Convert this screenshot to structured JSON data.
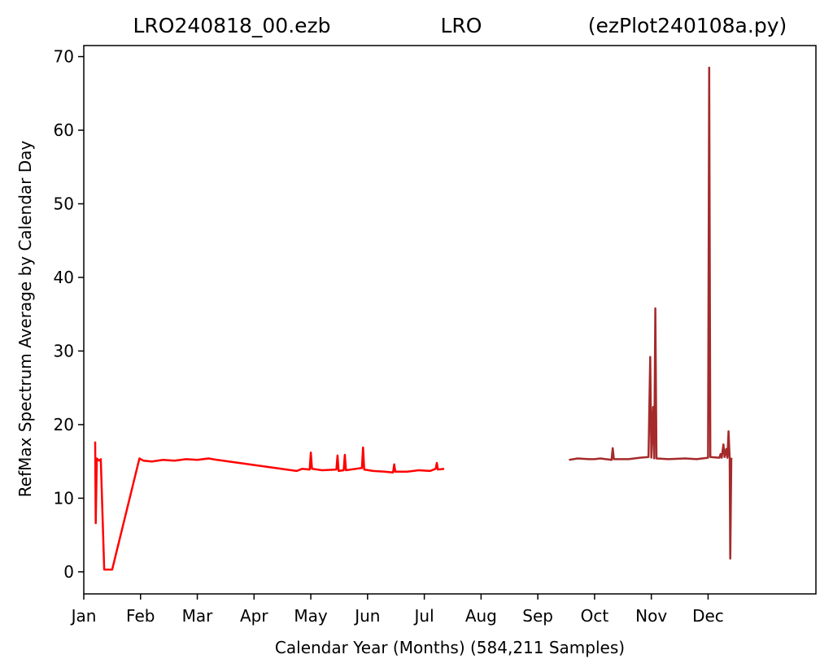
{
  "chart_data": {
    "type": "line",
    "title_left": "LRO240818_00.ezb",
    "title_center": "LRO",
    "title_right": "(ezPlot240108a.py)",
    "xlabel": "Calendar Year (Months) (584,211 Samples)",
    "ylabel": "RefMax Spectrum Average by Calendar Day",
    "xlim": [
      0,
      12.9
    ],
    "ylim": [
      -3,
      71.5
    ],
    "x_ticks": [
      {
        "label": "Jan",
        "value": 0
      },
      {
        "label": "Feb",
        "value": 1
      },
      {
        "label": "Mar",
        "value": 2
      },
      {
        "label": "Apr",
        "value": 3
      },
      {
        "label": "May",
        "value": 4
      },
      {
        "label": "Jun",
        "value": 5
      },
      {
        "label": "Jul",
        "value": 6
      },
      {
        "label": "Aug",
        "value": 7
      },
      {
        "label": "Sep",
        "value": 8
      },
      {
        "label": "Oct",
        "value": 9
      },
      {
        "label": "Nov",
        "value": 10
      },
      {
        "label": "Dec",
        "value": 11
      }
    ],
    "y_ticks": [
      0,
      10,
      20,
      30,
      40,
      50,
      60,
      70
    ],
    "x_unit": "months since Jan 1",
    "grid": false,
    "legend": "none",
    "series": [
      {
        "color": "#ff0000",
        "points": [
          [
            0.2,
            17.7
          ],
          [
            0.21,
            6.6
          ],
          [
            0.23,
            15.4
          ],
          [
            0.27,
            15.1
          ],
          [
            0.3,
            15.3
          ],
          [
            0.36,
            0.3
          ],
          [
            0.5,
            0.3
          ],
          [
            0.98,
            15.4
          ],
          [
            1.05,
            15.1
          ],
          [
            1.2,
            15.0
          ],
          [
            1.4,
            15.2
          ],
          [
            1.6,
            15.1
          ],
          [
            1.8,
            15.3
          ],
          [
            2.0,
            15.2
          ],
          [
            2.2,
            15.4
          ],
          [
            2.35,
            15.2
          ],
          [
            3.75,
            13.7
          ],
          [
            3.85,
            14.0
          ],
          [
            3.98,
            13.9
          ],
          [
            4.0,
            16.2
          ],
          [
            4.02,
            14.0
          ],
          [
            4.2,
            13.8
          ],
          [
            4.45,
            13.9
          ],
          [
            4.47,
            15.8
          ],
          [
            4.49,
            13.7
          ],
          [
            4.58,
            13.8
          ],
          [
            4.6,
            15.9
          ],
          [
            4.62,
            13.8
          ],
          [
            4.8,
            14.0
          ],
          [
            4.9,
            14.1
          ],
          [
            4.92,
            16.9
          ],
          [
            4.94,
            13.9
          ],
          [
            5.1,
            13.7
          ],
          [
            5.3,
            13.6
          ],
          [
            5.45,
            13.5
          ],
          [
            5.47,
            14.6
          ],
          [
            5.49,
            13.6
          ],
          [
            5.7,
            13.6
          ],
          [
            5.9,
            13.8
          ],
          [
            6.1,
            13.7
          ],
          [
            6.2,
            14.0
          ],
          [
            6.22,
            14.8
          ],
          [
            6.24,
            13.9
          ],
          [
            6.35,
            14.0
          ]
        ]
      },
      {
        "color": "#a52a2a",
        "points": [
          [
            8.55,
            15.2
          ],
          [
            8.7,
            15.4
          ],
          [
            8.9,
            15.3
          ],
          [
            9.0,
            15.3
          ],
          [
            9.1,
            15.4
          ],
          [
            9.3,
            15.2
          ],
          [
            9.32,
            16.8
          ],
          [
            9.34,
            15.3
          ],
          [
            9.6,
            15.3
          ],
          [
            9.8,
            15.5
          ],
          [
            9.95,
            15.6
          ],
          [
            9.98,
            29.2
          ],
          [
            10.0,
            15.5
          ],
          [
            10.03,
            22.4
          ],
          [
            10.05,
            15.4
          ],
          [
            10.07,
            35.8
          ],
          [
            10.09,
            15.4
          ],
          [
            10.3,
            15.3
          ],
          [
            10.6,
            15.4
          ],
          [
            10.8,
            15.3
          ],
          [
            11.0,
            15.5
          ],
          [
            11.02,
            68.5
          ],
          [
            11.04,
            15.6
          ],
          [
            11.2,
            15.5
          ],
          [
            11.22,
            16.0
          ],
          [
            11.24,
            15.5
          ],
          [
            11.27,
            17.3
          ],
          [
            11.29,
            15.6
          ],
          [
            11.32,
            16.7
          ],
          [
            11.34,
            15.5
          ],
          [
            11.36,
            19.1
          ],
          [
            11.38,
            15.4
          ],
          [
            11.39,
            1.8
          ],
          [
            11.41,
            15.5
          ]
        ]
      }
    ]
  }
}
